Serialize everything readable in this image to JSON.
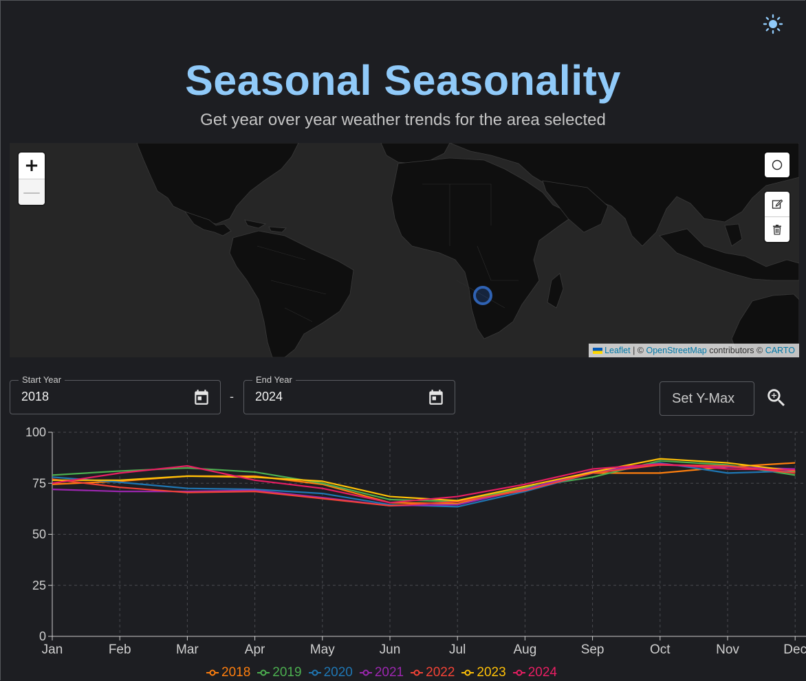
{
  "header": {
    "title": "Seasonal Seasonality",
    "subtitle": "Get year over year weather trends for the area selected"
  },
  "map": {
    "zoom_in": "+",
    "zoom_out": "—",
    "attribution": {
      "leaflet": "Leaflet",
      "sep": " | © ",
      "osm": "OpenStreetMap",
      "contrib": " contributors © ",
      "carto": "CARTO"
    }
  },
  "controls": {
    "start_label": "Start Year",
    "start_value": "2018",
    "dash": "-",
    "end_label": "End Year",
    "end_value": "2024",
    "ymax_placeholder": "Set Y-Max"
  },
  "colors": {
    "accent": "#90caf9",
    "background": "#1d1e22"
  },
  "chart_data": {
    "type": "line",
    "categories": [
      "Jan",
      "Feb",
      "Mar",
      "Apr",
      "May",
      "Jun",
      "Jul",
      "Aug",
      "Sep",
      "Oct",
      "Nov",
      "Dec"
    ],
    "ylim": [
      0,
      100
    ],
    "yticks": [
      0,
      25,
      50,
      75,
      100
    ],
    "grid": true,
    "legend_position": "bottom",
    "series": [
      {
        "name": "2018",
        "color": "#ff7f0e",
        "values": [
          74.5,
          76,
          78.5,
          78.5,
          74.5,
          65.5,
          65,
          72.5,
          80,
          80,
          83,
          85
        ]
      },
      {
        "name": "2019",
        "color": "#4caf50",
        "values": [
          79,
          81,
          82.5,
          80.5,
          75,
          67,
          66,
          73,
          78,
          86,
          84,
          79
        ]
      },
      {
        "name": "2020",
        "color": "#1f77b4",
        "values": [
          78,
          75.5,
          72.5,
          72,
          70,
          64.5,
          63.5,
          71,
          80,
          85,
          80,
          81
        ]
      },
      {
        "name": "2021",
        "color": "#9c27b0",
        "values": [
          72,
          71,
          71,
          71.5,
          68,
          64,
          64.5,
          72,
          81,
          84,
          83,
          82
        ]
      },
      {
        "name": "2022",
        "color": "#f44336",
        "values": [
          77,
          73,
          70.5,
          71,
          67.5,
          64,
          66,
          71.5,
          80,
          84,
          83.5,
          80
        ]
      },
      {
        "name": "2023",
        "color": "#ffc107",
        "values": [
          76.5,
          76.5,
          78.5,
          78,
          76,
          68.5,
          66.5,
          73.5,
          80.5,
          87,
          85,
          81
        ]
      },
      {
        "name": "2024",
        "color": "#e91e63",
        "values": [
          75,
          80,
          83.5,
          76.5,
          72.5,
          65.5,
          68.5,
          74.5,
          82,
          84.5,
          82,
          81.5
        ]
      }
    ]
  }
}
